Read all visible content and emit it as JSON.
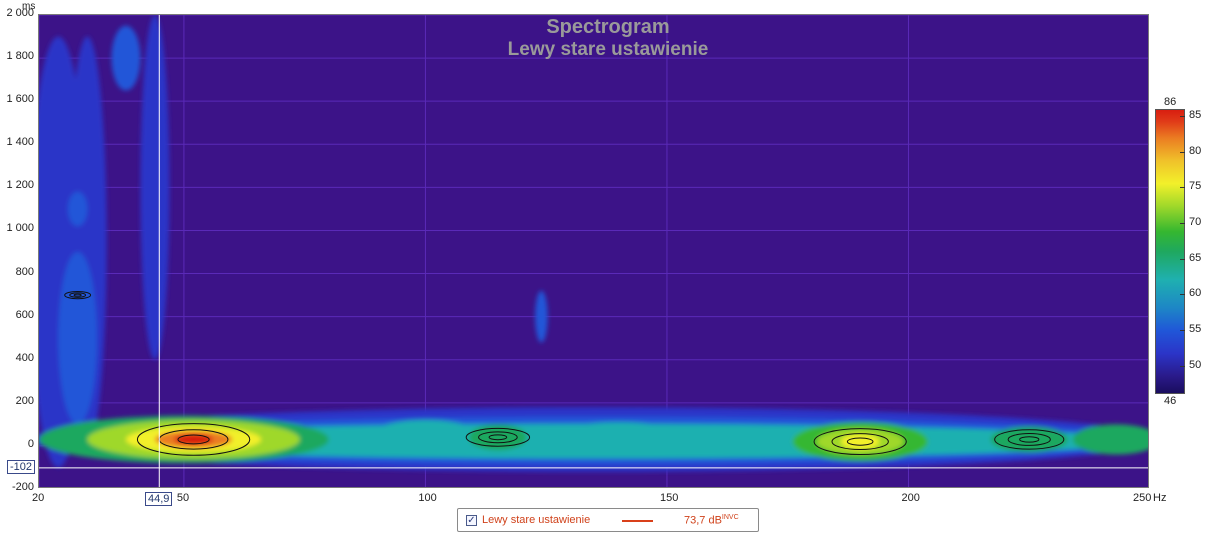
{
  "chart_data": {
    "type": "heatmap",
    "title": "Spectrogram",
    "subtitle": "Lewy stare ustawienie",
    "xlabel": "Hz",
    "ylabel": "ms",
    "xlim": [
      20,
      250
    ],
    "ylim": [
      -200,
      2000
    ],
    "x_ticks": [
      "20",
      "50",
      "100",
      "150",
      "200",
      "250"
    ],
    "x_unit": "Hz",
    "y_ticks": [
      "2 000",
      "1 800",
      "1 600",
      "1 400",
      "1 200",
      "1 000",
      "800",
      "600",
      "400",
      "200",
      "0",
      "-200"
    ],
    "y_unit": "ms",
    "colorbar": {
      "min_label": "46",
      "max_label": "86",
      "min": 46,
      "max": 86,
      "ticks": [
        "85",
        "80",
        "75",
        "70",
        "65",
        "60",
        "55",
        "50"
      ]
    },
    "cursor": {
      "x_label": "44,9",
      "y_label": "-102",
      "x": 44.9,
      "y": -102
    },
    "hotspots": [
      {
        "freq": 52,
        "time": 30,
        "level": 85
      },
      {
        "freq": 190,
        "time": 20,
        "level": 78
      },
      {
        "freq": 115,
        "time": 40,
        "level": 68
      },
      {
        "freq": 225,
        "time": 30,
        "level": 70
      },
      {
        "freq": 28,
        "time": 700,
        "level": 55
      }
    ],
    "grid": true
  },
  "legend": {
    "checked": true,
    "check_glyph": "✓",
    "series_name": "Lewy stare ustawienie",
    "series_color": "#d9401a",
    "value": "73,7 dB",
    "value_suffix": "INVC"
  },
  "colors": {
    "background": "#3c1388",
    "grid": "#5a2ab8",
    "title": "#9a9a9a"
  }
}
